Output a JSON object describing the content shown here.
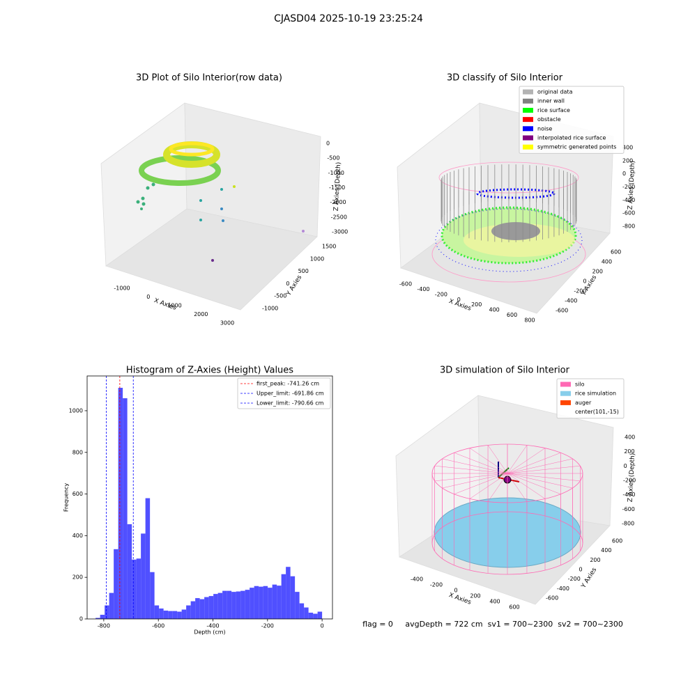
{
  "suptitle": "CJASD04 2025-10-19 23:25:24",
  "chart_data": [
    {
      "type": "scatter3d",
      "title": "3D Plot of Silo Interior(row data)",
      "xlabel": "X Axies",
      "ylabel": "Y Axies",
      "zlabel": "Z Axies (Depth)",
      "xticks": [
        -1000,
        0,
        1000,
        2000,
        3000
      ],
      "yticks": [
        -1000,
        -500,
        0,
        500,
        1000,
        1500
      ],
      "zticks": [
        0,
        -500,
        -1000,
        -1500,
        -2000,
        -2500,
        -3000
      ]
    },
    {
      "type": "scatter3d",
      "title": "3D classify of Silo Interior",
      "xlabel": "X Axies",
      "ylabel": "Y Axies",
      "zlabel": "Z Axies (Depth)",
      "xticks": [
        -600,
        -400,
        -200,
        0,
        200,
        400,
        600,
        800
      ],
      "yticks": [
        -600,
        -400,
        -200,
        0,
        200,
        400,
        600
      ],
      "zticks": [
        400,
        200,
        0,
        -200,
        -400,
        -600,
        -800
      ],
      "legend": [
        {
          "name": "original data",
          "color": "#b3b3b3"
        },
        {
          "name": "inner wall",
          "color": "#808080"
        },
        {
          "name": "rice surface",
          "color": "#00ff00"
        },
        {
          "name": "obstacle",
          "color": "#ff0000"
        },
        {
          "name": "noise",
          "color": "#0000ff"
        },
        {
          "name": "interpolated rice surface",
          "color": "#800080"
        },
        {
          "name": "symmetric generated points",
          "color": "#ffff00"
        }
      ]
    },
    {
      "type": "histogram",
      "title": "Histogram of Z-Axies (Height) Values",
      "xlabel": "Depth (cm)",
      "ylabel": "Frequency",
      "color": "#5050ff",
      "bins": [
        -830,
        -813.4,
        -796.8,
        -780.2,
        -763.6,
        -747,
        -730.4,
        -713.8,
        -697.2,
        -680.6,
        -664,
        -647.4,
        -630.8,
        -614.2,
        -597.6,
        -581,
        -564.4,
        -547.8,
        -531.2,
        -514.6,
        -498,
        -481.4,
        -464.8,
        -448.2,
        -431.6,
        -415,
        -398.4,
        -381.8,
        -365.2,
        -348.6,
        -332,
        -315.4,
        -298.8,
        -282.2,
        -265.6,
        -249,
        -232.4,
        -215.8,
        -199.2,
        -182.6,
        -166,
        -149.4,
        -132.8,
        -116.2,
        -99.6,
        -83,
        -66.4,
        -49.8,
        -33.2,
        -16.6,
        0
      ],
      "counts": [
        5,
        20,
        65,
        125,
        335,
        1110,
        1060,
        455,
        285,
        290,
        410,
        580,
        225,
        65,
        50,
        40,
        38,
        38,
        35,
        45,
        65,
        85,
        100,
        95,
        105,
        110,
        120,
        125,
        135,
        135,
        130,
        132,
        135,
        140,
        150,
        158,
        155,
        158,
        150,
        165,
        160,
        215,
        250,
        205,
        130,
        75,
        55,
        30,
        25,
        35
      ],
      "xlim": [
        -861,
        38
      ],
      "ylim": [
        0,
        1167
      ],
      "xticks": [
        -800,
        -600,
        -400,
        -200,
        0
      ],
      "yticks": [
        0,
        200,
        400,
        600,
        800,
        1000
      ],
      "lines": [
        {
          "label": "first_peak: -741.26 cm",
          "value": -741.26,
          "color": "#ff0000"
        },
        {
          "label": "Upper_limit: -691.86 cm",
          "value": -691.86,
          "color": "#0000ff"
        },
        {
          "label": "Lower_limit: -790.66 cm",
          "value": -790.66,
          "color": "#0000ff"
        }
      ]
    },
    {
      "type": "surface3d",
      "title": "3D simulation of Silo Interior",
      "xlabel": "X Axies",
      "ylabel": "Y Axies",
      "zlabel": "Z Axies (Depth)",
      "xticks": [
        -400,
        -200,
        0,
        200,
        400,
        600
      ],
      "yticks": [
        -600,
        -400,
        -200,
        0,
        200,
        400,
        600
      ],
      "zticks": [
        400,
        200,
        0,
        -200,
        -400,
        -600,
        -800
      ],
      "legend": [
        {
          "name": "silo",
          "color": "#ff69b4"
        },
        {
          "name": "rice simulation",
          "color": "#87ceeb"
        },
        {
          "name": "auger",
          "color": "#ff4500"
        },
        {
          "name": "center(101,-15)"
        }
      ]
    }
  ],
  "footer": "flag = 0     avgDepth = 722 cm  sv1 = 700~2300  sv2 = 700~2300"
}
